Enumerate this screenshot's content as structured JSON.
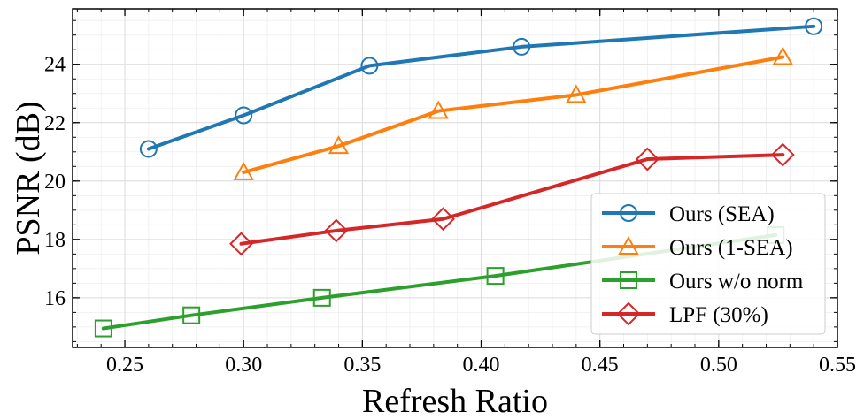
{
  "chart_data": {
    "type": "line",
    "title": "",
    "xlabel": "Refresh Ratio",
    "ylabel": "PSNR (dB)",
    "xlim": [
      0.228,
      0.55
    ],
    "ylim": [
      14.3,
      25.9
    ],
    "xticks": [
      0.25,
      0.3,
      0.35,
      0.4,
      0.45,
      0.5,
      0.55
    ],
    "xtick_labels": [
      "0.25",
      "0.30",
      "0.35",
      "0.40",
      "0.45",
      "0.50",
      "0.55"
    ],
    "yticks": [
      16,
      18,
      20,
      22,
      24
    ],
    "ytick_labels": [
      "16",
      "18",
      "20",
      "22",
      "24"
    ],
    "grid": true,
    "legend_position": "lower-right",
    "series": [
      {
        "name": "Ours (SEA)",
        "color": "#1f77b4",
        "marker": "circle",
        "x": [
          0.26,
          0.3,
          0.353,
          0.417,
          0.54
        ],
        "y": [
          21.1,
          22.25,
          23.95,
          24.6,
          25.3
        ]
      },
      {
        "name": "Ours (1-SEA)",
        "color": "#ff7f0e",
        "marker": "triangle",
        "x": [
          0.3,
          0.34,
          0.382,
          0.44,
          0.527
        ],
        "y": [
          20.3,
          21.2,
          22.4,
          22.95,
          24.25
        ]
      },
      {
        "name": "Ours w/o norm",
        "color": "#2ca02c",
        "marker": "square",
        "x": [
          0.241,
          0.278,
          0.333,
          0.406,
          0.524
        ],
        "y": [
          14.95,
          15.4,
          16.0,
          16.75,
          18.15
        ]
      },
      {
        "name": "LPF (30%)",
        "color": "#d62728",
        "marker": "diamond",
        "x": [
          0.299,
          0.339,
          0.384,
          0.47,
          0.527
        ],
        "y": [
          17.85,
          18.3,
          18.7,
          20.75,
          20.9
        ]
      }
    ]
  }
}
